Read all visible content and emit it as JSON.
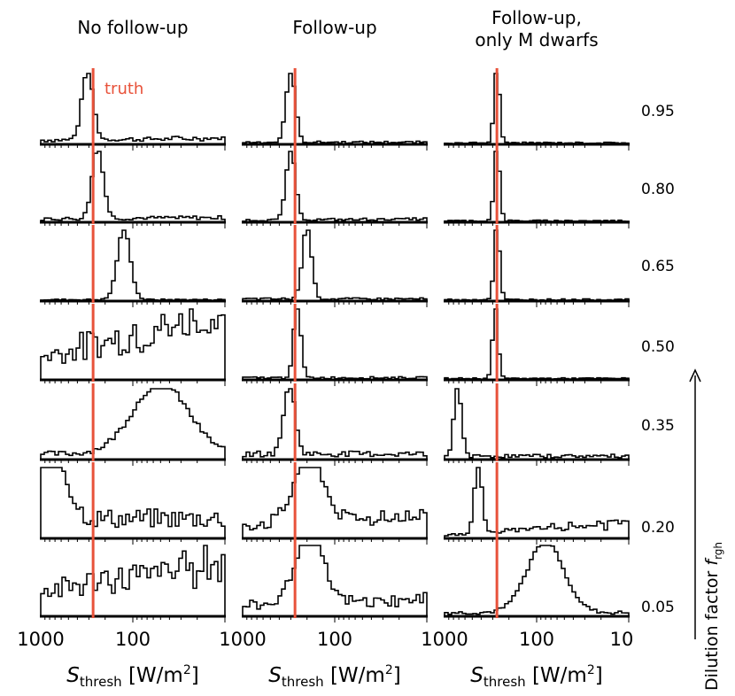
{
  "columns": [
    {
      "title_lines": [
        "No follow-up"
      ]
    },
    {
      "title_lines": [
        "Follow-up"
      ]
    },
    {
      "title_lines": [
        "Follow-up,",
        "only M dwarfs"
      ]
    }
  ],
  "rows": [
    "0.95",
    "0.80",
    "0.65",
    "0.50",
    "0.35",
    "0.20",
    "0.05"
  ],
  "truth_label": "truth",
  "truth_color": "#e8523a",
  "x_ticks": [
    {
      "value": 1000,
      "label": "1000"
    },
    {
      "value": 100,
      "label": "100"
    },
    {
      "value": 10,
      "label": "10"
    }
  ],
  "xlabel": {
    "symbol": "S",
    "sub": "thresh",
    "unit_pre": " [W/m",
    "unit_sup": "2",
    "unit_post": "]"
  },
  "ylabel": {
    "text": "Dilution factor ",
    "symbol": "f",
    "sub": "rgh"
  },
  "chart_data": {
    "type": "histogram-grid",
    "x_scale": "log, reversed",
    "xlim": [
      1000,
      10
    ],
    "truth_value": 270,
    "panels": [
      [
        {
          "dilution": "0.95",
          "peak": 310,
          "w": 0.06,
          "bg": 0.06,
          "rise": 0.03
        },
        {
          "dilution": "0.80",
          "peak": 240,
          "w": 0.06,
          "bg": 0.05,
          "rise": 0.02
        },
        {
          "dilution": "0.65",
          "peak": 125,
          "w": 0.07,
          "bg": 0.02,
          "rise": 0.0
        },
        {
          "dilution": "0.50",
          "peak": 0,
          "w": 0.1,
          "bg": 0.25,
          "rise": 0.5
        },
        {
          "dilution": "0.35",
          "peak": 50,
          "w": 0.3,
          "bg": 0.08,
          "rise": 0.0
        },
        {
          "dilution": "0.20",
          "peak": 750,
          "w": 0.15,
          "bg": 0.28,
          "rise": 0.0
        },
        {
          "dilution": "0.05",
          "peak": 0,
          "w": 0.1,
          "bg": 0.35,
          "rise": 0.5
        }
      ],
      [
        {
          "dilution": "0.95",
          "peak": 300,
          "w": 0.05,
          "bg": 0.03,
          "rise": 0.0
        },
        {
          "dilution": "0.80",
          "peak": 300,
          "w": 0.05,
          "bg": 0.03,
          "rise": 0.02
        },
        {
          "dilution": "0.65",
          "peak": 200,
          "w": 0.05,
          "bg": 0.03,
          "rise": 0.0
        },
        {
          "dilution": "0.50",
          "peak": 255,
          "w": 0.04,
          "bg": 0.03,
          "rise": 0.0
        },
        {
          "dilution": "0.35",
          "peak": 310,
          "w": 0.06,
          "bg": 0.08,
          "rise": 0.0
        },
        {
          "dilution": "0.20",
          "peak": 190,
          "w": 0.15,
          "bg": 0.2,
          "rise": 0.15
        },
        {
          "dilution": "0.05",
          "peak": 190,
          "w": 0.15,
          "bg": 0.15,
          "rise": 0.1
        }
      ],
      [
        {
          "dilution": "0.95",
          "peak": 270,
          "w": 0.03,
          "bg": 0.02,
          "rise": 0.0
        },
        {
          "dilution": "0.80",
          "peak": 270,
          "w": 0.03,
          "bg": 0.02,
          "rise": 0.0
        },
        {
          "dilution": "0.65",
          "peak": 270,
          "w": 0.03,
          "bg": 0.02,
          "rise": 0.0
        },
        {
          "dilution": "0.50",
          "peak": 280,
          "w": 0.03,
          "bg": 0.02,
          "rise": 0.0
        },
        {
          "dilution": "0.35",
          "peak": 720,
          "w": 0.04,
          "bg": 0.05,
          "rise": 0.0
        },
        {
          "dilution": "0.20",
          "peak": 430,
          "w": 0.04,
          "bg": 0.05,
          "rise": 0.2
        },
        {
          "dilution": "0.05",
          "peak": 80,
          "w": 0.2,
          "bg": 0.05,
          "rise": 0.0
        }
      ]
    ]
  }
}
